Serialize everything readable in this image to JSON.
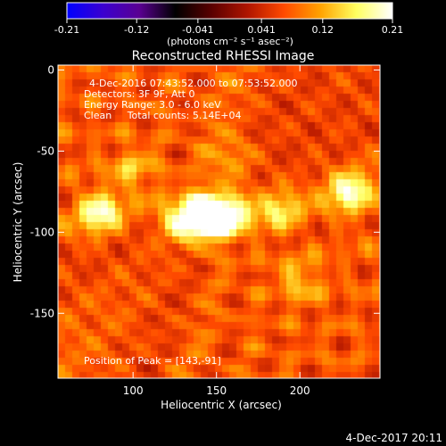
{
  "colorbar": {
    "ticks": [
      "-0.21",
      "-0.12",
      "-0.041",
      "0.041",
      "0.12",
      "0.21"
    ],
    "tick_values": [
      -0.21,
      -0.12,
      -0.041,
      0.041,
      0.12,
      0.21
    ],
    "range": [
      -0.21,
      0.21
    ],
    "unit_label": "(photons cm⁻² s⁻¹ asec⁻²)",
    "stops": [
      "#0000ff",
      "#3b00cf",
      "#5a0092",
      "#000000",
      "#5a0000",
      "#b01500",
      "#ff4a00",
      "#ffa200",
      "#ffff60",
      "#ffffff"
    ]
  },
  "chart_data": {
    "type": "heatmap",
    "title": "Reconstructed RHESSI Image",
    "xlabel": "Heliocentric X (arcsec)",
    "ylabel": "Heliocentric Y (arcsec)",
    "xlim": [
      55,
      248
    ],
    "ylim": [
      -190,
      3
    ],
    "xticks": [
      100,
      150,
      200
    ],
    "yticks": [
      0,
      -50,
      -100,
      -150
    ],
    "annotations": [
      "4-Dec-2016 07:43:52.000 to 07:53:52.000",
      "Detectors: 3F 9F, Att 0",
      "Energy Range: 3.0 - 6.0 keV",
      "Clean     Total counts: 5.14E+04",
      "Position of Peak = [143,-91]"
    ],
    "peak": [
      143,
      -91
    ],
    "sources": [
      {
        "x": 143,
        "y": -91,
        "intensity": 0.21
      },
      {
        "x": 158,
        "y": -88,
        "intensity": 0.14
      },
      {
        "x": 128,
        "y": -93,
        "intensity": 0.1
      },
      {
        "x": 80,
        "y": -88,
        "intensity": 0.12
      },
      {
        "x": 230,
        "y": -76,
        "intensity": 0.12
      },
      {
        "x": 188,
        "y": -86,
        "intensity": 0.08
      },
      {
        "x": 100,
        "y": -62,
        "intensity": 0.06
      },
      {
        "x": 200,
        "y": -130,
        "intensity": 0.06
      },
      {
        "x": 160,
        "y": -55,
        "intensity": 0.05
      }
    ]
  },
  "footer": {
    "timestamp": "4-Dec-2017 20:11"
  }
}
